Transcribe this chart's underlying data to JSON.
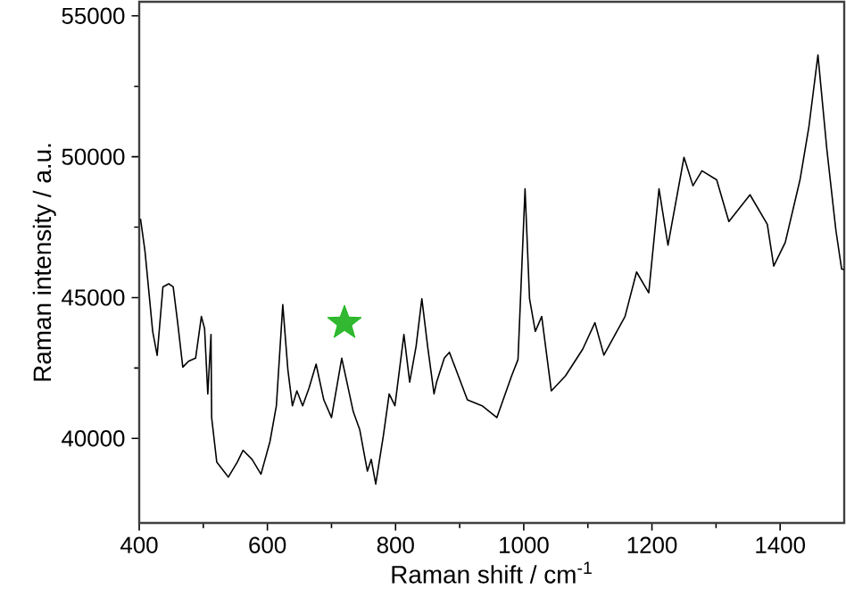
{
  "chart_data": {
    "type": "line",
    "xlabel": "Raman shift / cm$^{-1}$",
    "ylabel": "Raman intensity / a.u.",
    "xlim": [
      400,
      1500
    ],
    "ylim": [
      37000,
      55500
    ],
    "xticks": [
      400,
      600,
      800,
      1000,
      1200,
      1400
    ],
    "yticks": [
      40000,
      45000,
      50000,
      55000
    ],
    "grid": false,
    "marker": "none",
    "line_style": "solid",
    "series": [
      {
        "color": "#000000",
        "x": [
          402,
          409,
          421,
          428,
          437,
          446,
          453,
          460,
          468,
          477,
          488,
          497,
          502,
          507,
          512,
          513,
          521,
          539,
          553,
          562,
          576,
          590,
          604,
          614,
          624,
          632,
          639,
          646,
          655,
          665,
          676,
          688,
          700,
          716,
          725,
          734,
          744,
          756,
          762,
          769,
          781,
          790,
          799,
          813,
          822,
          832,
          841,
          850,
          860,
          864,
          876,
          884,
          912,
          935,
          958,
          981,
          991,
          1002,
          1009,
          1018,
          1028,
          1043,
          1065,
          1092,
          1111,
          1125,
          1158,
          1176,
          1195,
          1211,
          1225,
          1250,
          1264,
          1278,
          1301,
          1320,
          1353,
          1380,
          1390,
          1408,
          1431,
          1445,
          1459,
          1473,
          1487,
          1496,
          1500
        ],
        "values": [
          47800,
          46650,
          43800,
          42950,
          45380,
          45490,
          45380,
          44110,
          42530,
          42740,
          42850,
          44330,
          43900,
          41580,
          43690,
          40740,
          39160,
          38630,
          39160,
          39580,
          39260,
          38730,
          39890,
          41160,
          44750,
          42430,
          41160,
          41690,
          41160,
          41790,
          42640,
          41370,
          40740,
          42850,
          41900,
          40950,
          40320,
          38840,
          39260,
          38380,
          40110,
          41580,
          41160,
          43690,
          42000,
          43270,
          44960,
          43270,
          41580,
          42000,
          42850,
          43060,
          41370,
          41160,
          40740,
          42220,
          42800,
          48860,
          44960,
          43800,
          44330,
          41690,
          42220,
          43170,
          44110,
          42960,
          44330,
          45910,
          45170,
          48860,
          46860,
          49980,
          48970,
          49500,
          49180,
          47700,
          48650,
          47600,
          46120,
          46960,
          49180,
          51080,
          53610,
          50240,
          47390,
          46010,
          46000
        ]
      }
    ]
  }
}
